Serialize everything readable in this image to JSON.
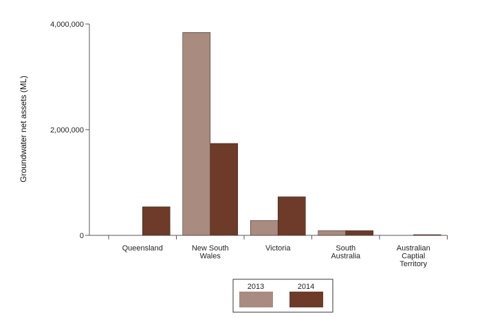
{
  "chart_data": {
    "type": "bar",
    "title": "",
    "xlabel": "",
    "ylabel": "Groundwater net assets (ML)",
    "ylim": [
      0,
      4000000
    ],
    "yticks": [
      0,
      2000000,
      4000000
    ],
    "ytick_labels": [
      "0",
      "2,000,000",
      "4,000,000"
    ],
    "categories": [
      [
        "Queensland"
      ],
      [
        "New South",
        "Wales"
      ],
      [
        "Victoria"
      ],
      [
        "South",
        "Australia"
      ],
      [
        "Australian",
        "Captial",
        "Territory"
      ]
    ],
    "series": [
      {
        "name": "2013",
        "color": "#a98b80",
        "values": [
          0,
          3840000,
          280000,
          90000,
          0
        ]
      },
      {
        "name": "2014",
        "color": "#6e3b28",
        "values": [
          540000,
          1740000,
          730000,
          90000,
          8000
        ]
      }
    ],
    "legend": {
      "position": "bottom-center",
      "labels": [
        "2013",
        "2014"
      ]
    }
  }
}
